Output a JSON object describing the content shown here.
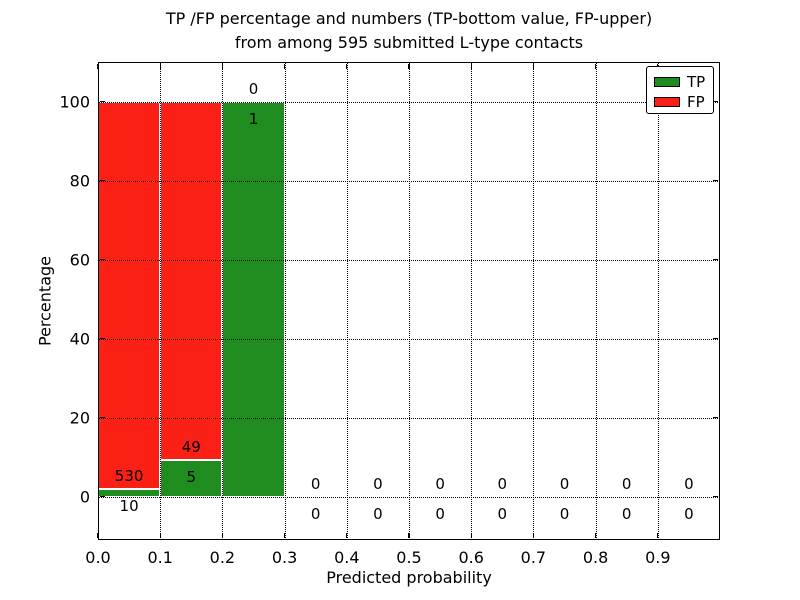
{
  "figure": {
    "title_line1": "TP /FP percentage and numbers (TP-bottom value, FP-upper)",
    "title_line2": "from among 595 submitted L-type contacts"
  },
  "chart_data": {
    "type": "bar",
    "subtype": "stacked-percentage-histogram",
    "title": "TP /FP percentage and numbers (TP-bottom value, FP-upper) from among 595 submitted L-type contacts",
    "xlabel": "Predicted probability",
    "ylabel": "Percentage",
    "total_submitted": 595,
    "xlim": [
      0.0,
      1.0
    ],
    "ylim": [
      -11,
      110
    ],
    "grid": "dotted-black-over-bars",
    "xticks": [
      {
        "v": 0.0,
        "label": "0.0"
      },
      {
        "v": 0.1,
        "label": "0.1"
      },
      {
        "v": 0.2,
        "label": "0.2"
      },
      {
        "v": 0.3,
        "label": "0.3"
      },
      {
        "v": 0.4,
        "label": "0.4"
      },
      {
        "v": 0.5,
        "label": "0.5"
      },
      {
        "v": 0.6,
        "label": "0.6"
      },
      {
        "v": 0.7,
        "label": "0.7"
      },
      {
        "v": 0.8,
        "label": "0.8"
      },
      {
        "v": 0.9,
        "label": "0.9"
      }
    ],
    "yticks": [
      {
        "v": 0,
        "label": "0"
      },
      {
        "v": 20,
        "label": "20"
      },
      {
        "v": 40,
        "label": "40"
      },
      {
        "v": 60,
        "label": "60"
      },
      {
        "v": 80,
        "label": "80"
      },
      {
        "v": 100,
        "label": "100"
      }
    ],
    "legend": {
      "position": "upper-right",
      "entries": [
        {
          "label": "TP",
          "color": "#1e8c1e"
        },
        {
          "label": "FP",
          "color": "#fb2015"
        }
      ]
    },
    "colors": {
      "tp": "#1e8c1e",
      "fp": "#fb2015",
      "bar_edge": "#ffffff",
      "text": "#000000"
    },
    "bins": [
      {
        "x0": 0.0,
        "x1": 0.1,
        "tp_count": 10,
        "fp_count": 530,
        "tp_pct": 1.852,
        "fp_pct": 98.148
      },
      {
        "x0": 0.1,
        "x1": 0.2,
        "tp_count": 5,
        "fp_count": 49,
        "tp_pct": 9.259,
        "fp_pct": 90.741
      },
      {
        "x0": 0.2,
        "x1": 0.3,
        "tp_count": 1,
        "fp_count": 0,
        "tp_pct": 100.0,
        "fp_pct": 0.0
      },
      {
        "x0": 0.3,
        "x1": 0.4,
        "tp_count": 0,
        "fp_count": 0,
        "tp_pct": 0.0,
        "fp_pct": 0.0
      },
      {
        "x0": 0.4,
        "x1": 0.5,
        "tp_count": 0,
        "fp_count": 0,
        "tp_pct": 0.0,
        "fp_pct": 0.0
      },
      {
        "x0": 0.5,
        "x1": 0.6,
        "tp_count": 0,
        "fp_count": 0,
        "tp_pct": 0.0,
        "fp_pct": 0.0
      },
      {
        "x0": 0.6,
        "x1": 0.7,
        "tp_count": 0,
        "fp_count": 0,
        "tp_pct": 0.0,
        "fp_pct": 0.0
      },
      {
        "x0": 0.7,
        "x1": 0.8,
        "tp_count": 0,
        "fp_count": 0,
        "tp_pct": 0.0,
        "fp_pct": 0.0
      },
      {
        "x0": 0.8,
        "x1": 0.9,
        "tp_count": 0,
        "fp_count": 0,
        "tp_pct": 0.0,
        "fp_pct": 0.0
      },
      {
        "x0": 0.9,
        "x1": 1.0,
        "tp_count": 0,
        "fp_count": 0,
        "tp_pct": 0.0,
        "fp_pct": 0.0
      }
    ]
  }
}
